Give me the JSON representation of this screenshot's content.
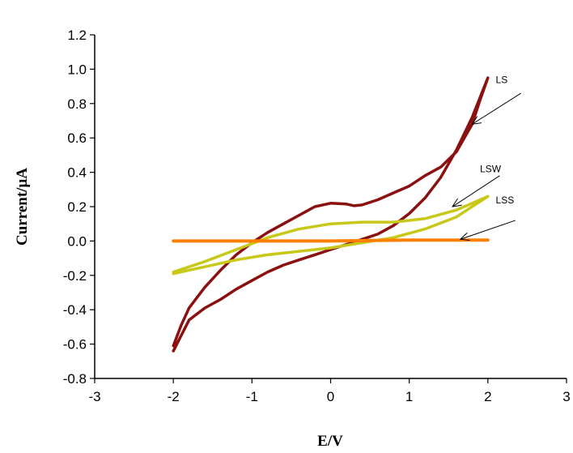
{
  "chart_data": {
    "type": "line",
    "title": "",
    "xlabel": "E/V",
    "ylabel": "Current/μA",
    "xlim": [
      -3,
      3
    ],
    "ylim": [
      -0.8,
      1.2
    ],
    "x_ticks": [
      "-3",
      "-2",
      "-1",
      "0",
      "1",
      "2",
      "3"
    ],
    "y_ticks": [
      "1.2",
      "1.0",
      "0.8",
      "0.6",
      "0.4",
      "0.2",
      "0.0",
      "-0.2",
      "-0.4",
      "-0.6",
      "-0.8"
    ],
    "grid": false,
    "legend": "none",
    "series": [
      {
        "name": "LS",
        "color": "#8b1010",
        "x": [
          -2.0,
          -1.9,
          -1.8,
          -1.6,
          -1.4,
          -1.2,
          -1.0,
          -0.8,
          -0.6,
          -0.4,
          -0.2,
          0.0,
          0.2,
          0.4,
          0.6,
          0.8,
          1.0,
          1.2,
          1.4,
          1.6,
          1.8,
          2.0,
          1.9,
          1.8,
          1.6,
          1.4,
          1.2,
          1.1,
          1.0,
          0.8,
          0.6,
          0.4,
          0.3,
          0.2,
          0.0,
          -0.2,
          -0.4,
          -0.6,
          -0.8,
          -1.0,
          -1.2,
          -1.4,
          -1.6,
          -1.8,
          -1.9,
          -2.0
        ],
        "y": [
          -0.64,
          -0.55,
          -0.46,
          -0.39,
          -0.34,
          -0.28,
          -0.23,
          -0.18,
          -0.14,
          -0.11,
          -0.08,
          -0.05,
          -0.02,
          0.01,
          0.04,
          0.09,
          0.16,
          0.25,
          0.37,
          0.53,
          0.72,
          0.95,
          0.82,
          0.68,
          0.52,
          0.43,
          0.38,
          0.35,
          0.32,
          0.28,
          0.24,
          0.21,
          0.205,
          0.215,
          0.22,
          0.2,
          0.15,
          0.1,
          0.05,
          -0.01,
          -0.08,
          -0.17,
          -0.27,
          -0.39,
          -0.49,
          -0.61
        ]
      },
      {
        "name": "LSW",
        "color": "#c8c818",
        "x": [
          -2.0,
          -1.6,
          -1.2,
          -0.8,
          -0.4,
          0.0,
          0.4,
          0.8,
          1.2,
          1.6,
          2.0,
          1.8,
          1.6,
          1.2,
          0.8,
          0.4,
          0.0,
          -0.4,
          -0.8,
          -1.2,
          -1.6,
          -2.0
        ],
        "y": [
          -0.19,
          -0.15,
          -0.11,
          -0.08,
          -0.06,
          -0.04,
          -0.01,
          0.02,
          0.07,
          0.14,
          0.26,
          0.22,
          0.18,
          0.13,
          0.11,
          0.11,
          0.1,
          0.07,
          0.02,
          -0.05,
          -0.12,
          -0.18
        ]
      },
      {
        "name": "LSS",
        "color": "#ff8000",
        "x": [
          -2.0,
          -1.0,
          0.0,
          1.0,
          2.0
        ],
        "y": [
          0.0,
          0.0,
          0.0,
          0.005,
          0.005
        ]
      }
    ],
    "annotations": [
      {
        "text": "LS",
        "label_x": 2.1,
        "label_y": 0.92,
        "arrow_from": [
          2.42,
          0.86
        ],
        "arrow_to": [
          1.8,
          0.68
        ]
      },
      {
        "text": "LSW",
        "label_x": 1.9,
        "label_y": 0.4,
        "arrow_from": [
          2.15,
          0.38
        ],
        "arrow_to": [
          1.55,
          0.2
        ]
      },
      {
        "text": "LSS",
        "label_x": 2.1,
        "label_y": 0.22,
        "arrow_from": [
          2.35,
          0.12
        ],
        "arrow_to": [
          1.65,
          0.01
        ]
      }
    ]
  }
}
